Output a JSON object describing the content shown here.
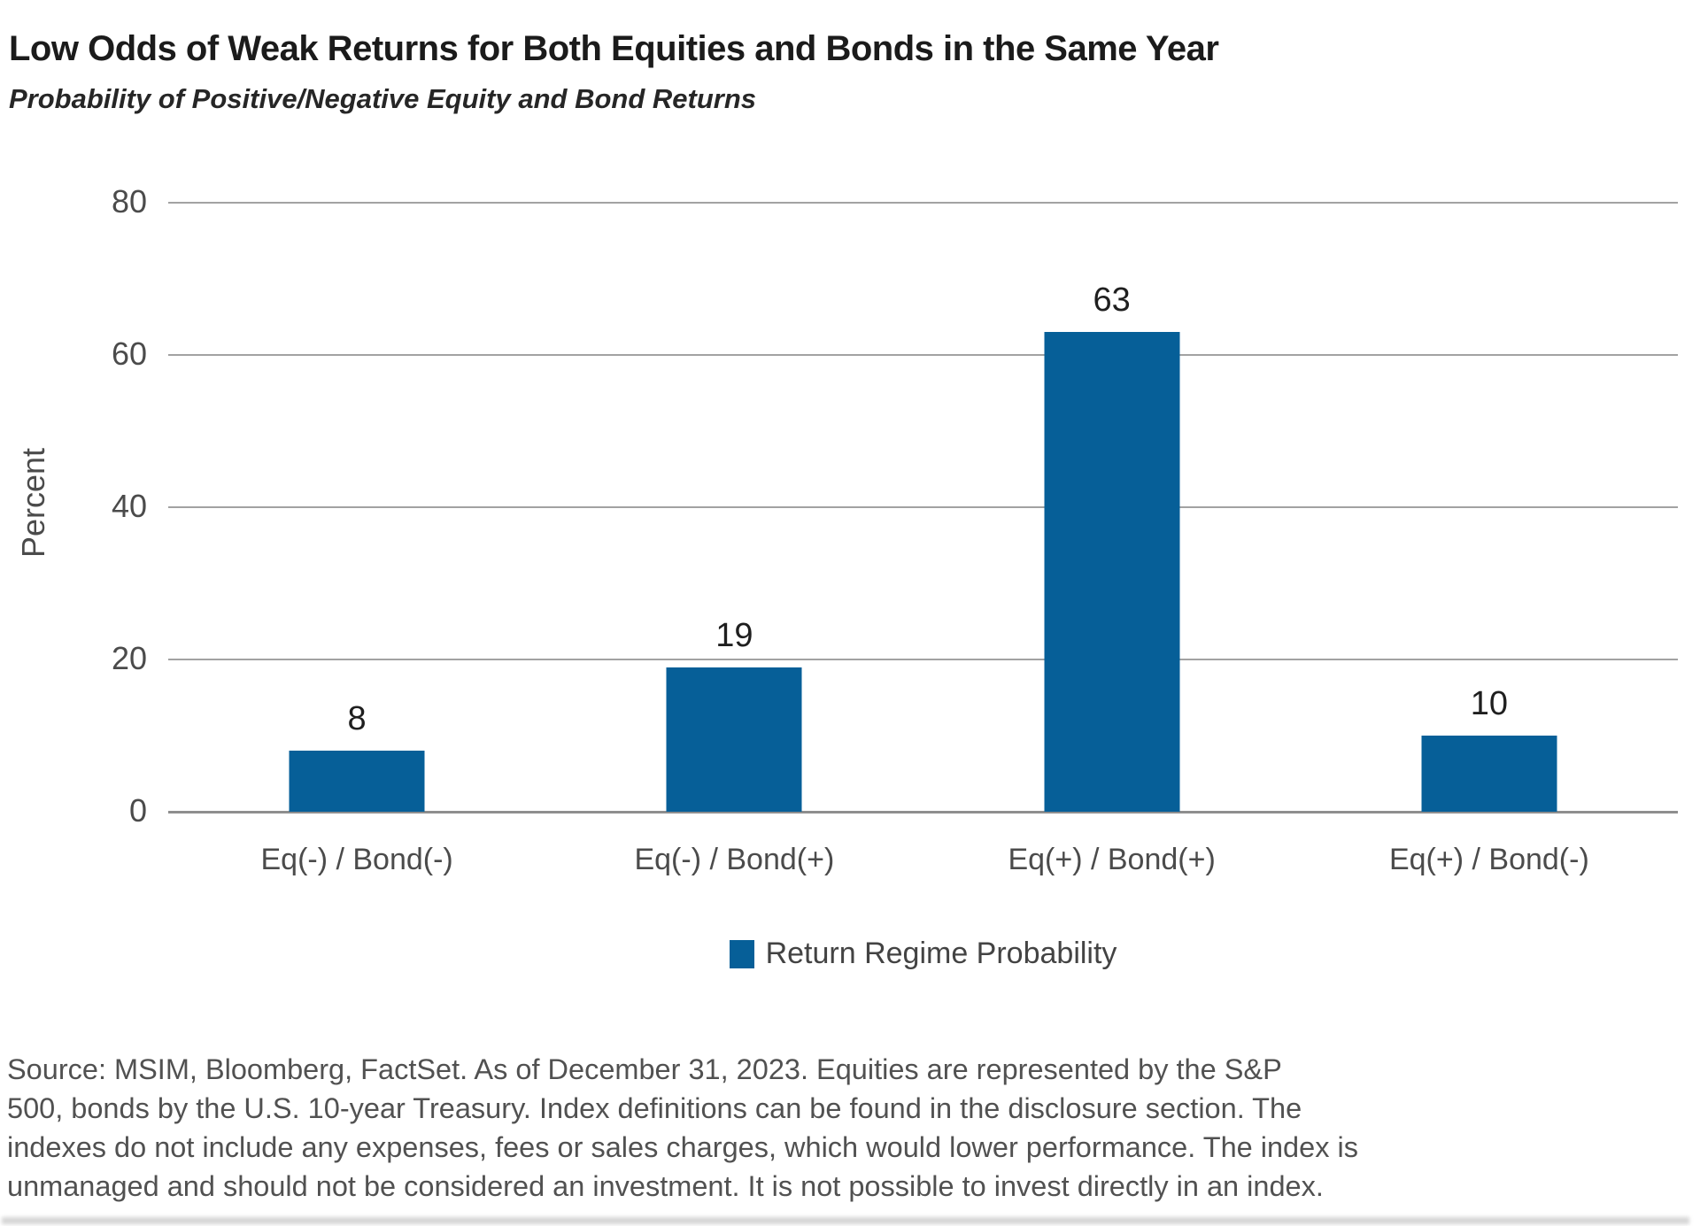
{
  "chart_data": {
    "type": "bar",
    "title": "Low Odds of Weak Returns for Both Equities and Bonds in the Same Year",
    "subtitle": "Probability of Positive/Negative Equity and Bond Returns",
    "categories": [
      "Eq(-) / Bond(-)",
      "Eq(-) / Bond(+)",
      "Eq(+) / Bond(+)",
      "Eq(+) / Bond(-)"
    ],
    "values": [
      8,
      19,
      63,
      10
    ],
    "xlabel": "",
    "ylabel": "Percent",
    "ylim": [
      0,
      80
    ],
    "yticks": [
      0,
      20,
      40,
      60,
      80
    ],
    "grid": true,
    "value_labels": true,
    "bar_color": "#065F98",
    "gridline_color": "#A2A2A2",
    "legend_position": "bottom",
    "legend_label": "Return Regime Probability"
  },
  "footer": {
    "source_lines": [
      "Source: MSIM, Bloomberg, FactSet. As of December 31, 2023. Equities are represented by the S&P",
      "500, bonds by the U.S. 10-year Treasury. Index definitions can be found in the disclosure section. The",
      "indexes do not include any expenses, fees or sales charges, which would lower performance. The index is",
      "unmanaged and should not be considered an investment. It is not possible to invest directly in an index."
    ]
  }
}
